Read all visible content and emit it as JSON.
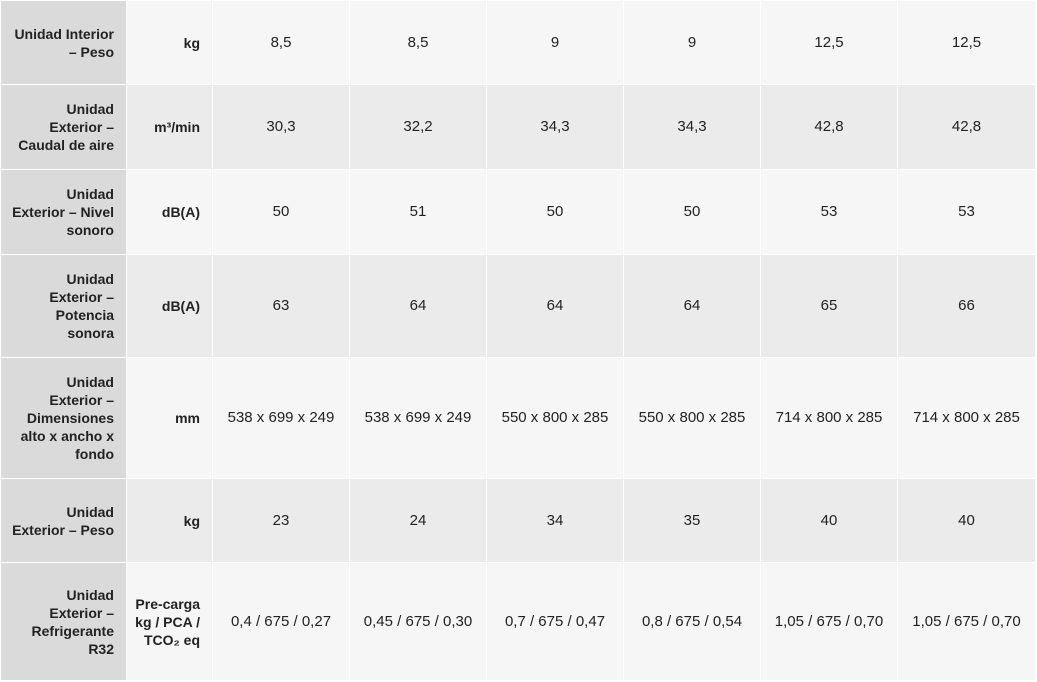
{
  "table": {
    "rows": [
      {
        "label": "Unidad Interior – Peso",
        "unit": "kg",
        "values": [
          "8,5",
          "8,5",
          "9",
          "9",
          "12,5",
          "12,5"
        ]
      },
      {
        "label": "Unidad Exterior – Caudal de aire",
        "unit": "m³/min",
        "values": [
          "30,3",
          "32,2",
          "34,3",
          "34,3",
          "42,8",
          "42,8"
        ]
      },
      {
        "label": "Unidad Exterior – Nivel sonoro",
        "unit": "dB(A)",
        "values": [
          "50",
          "51",
          "50",
          "50",
          "53",
          "53"
        ]
      },
      {
        "label": "Unidad Exterior – Potencia sonora",
        "unit": "dB(A)",
        "values": [
          "63",
          "64",
          "64",
          "64",
          "65",
          "66"
        ]
      },
      {
        "label": "Unidad Exterior – Dimensiones alto x ancho x fondo",
        "unit": "mm",
        "values": [
          "538 x 699 x 249",
          "538 x 699 x 249",
          "550 x 800 x 285",
          "550 x 800 x 285",
          "714 x 800 x 285",
          "714 x 800 x 285"
        ]
      },
      {
        "label": "Unidad Exterior – Peso",
        "unit": "kg",
        "values": [
          "23",
          "24",
          "34",
          "35",
          "40",
          "40"
        ]
      },
      {
        "label": "Unidad Exterior – Refrigerante R32",
        "unit": "Pre-carga kg / PCA / TCO₂ eq",
        "values": [
          "0,4 / 675 / 0,27",
          "0,45 / 675 / 0,30",
          "0,7 / 675 / 0,47",
          "0,8 / 675 / 0,54",
          "1,05 / 675 / 0,70",
          "1,05 / 675 / 0,70"
        ]
      }
    ]
  }
}
